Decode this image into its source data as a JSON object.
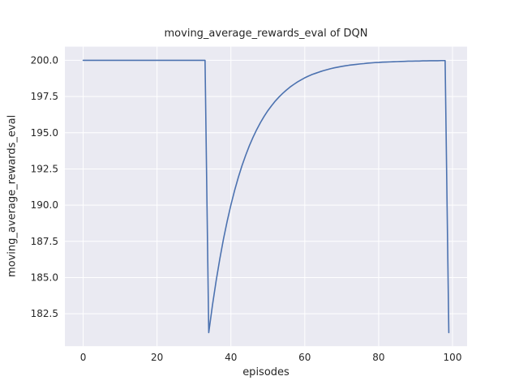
{
  "figure": {
    "background": "#ffffff"
  },
  "chart_data": {
    "type": "line",
    "title": "moving_average_rewards_eval of DQN",
    "xlabel": "episodes",
    "ylabel": "moving_average_rewards_eval",
    "x": [
      0,
      1,
      2,
      3,
      4,
      5,
      6,
      7,
      8,
      9,
      10,
      11,
      12,
      13,
      14,
      15,
      16,
      17,
      18,
      19,
      20,
      21,
      22,
      23,
      24,
      25,
      26,
      27,
      28,
      29,
      30,
      31,
      32,
      33,
      34,
      35,
      36,
      37,
      38,
      39,
      40,
      41,
      42,
      43,
      44,
      45,
      46,
      47,
      48,
      49,
      50,
      51,
      52,
      53,
      54,
      55,
      56,
      57,
      58,
      59,
      60,
      61,
      62,
      63,
      64,
      65,
      66,
      67,
      68,
      69,
      70,
      71,
      72,
      73,
      74,
      75,
      76,
      77,
      78,
      79,
      80,
      81,
      82,
      83,
      84,
      85,
      86,
      87,
      88,
      89,
      90,
      91,
      92,
      93,
      94,
      95,
      96,
      97,
      98,
      99
    ],
    "y": [
      200,
      200,
      200,
      200,
      200,
      200,
      200,
      200,
      200,
      200,
      200,
      200,
      200,
      200,
      200,
      200,
      200,
      200,
      200,
      200,
      200,
      200,
      200,
      200,
      200,
      200,
      200,
      200,
      200,
      200,
      200,
      200,
      200,
      200,
      181.2,
      183.08,
      184.77,
      186.29,
      187.67,
      188.9,
      190.01,
      191.01,
      191.91,
      192.72,
      193.44,
      194.1,
      194.69,
      195.22,
      195.7,
      196.13,
      196.52,
      196.86,
      197.18,
      197.46,
      197.71,
      197.94,
      198.15,
      198.33,
      198.5,
      198.65,
      198.79,
      198.91,
      199.02,
      199.11,
      199.2,
      199.28,
      199.35,
      199.42,
      199.48,
      199.53,
      199.58,
      199.62,
      199.66,
      199.69,
      199.72,
      199.75,
      199.77,
      199.8,
      199.82,
      199.84,
      199.85,
      199.87,
      199.88,
      199.89,
      199.9,
      199.91,
      199.92,
      199.93,
      199.94,
      199.94,
      199.95,
      199.95,
      199.96,
      199.96,
      199.97,
      199.97,
      199.97,
      199.98,
      199.98,
      181.2
    ],
    "xlim": [
      -4.95,
      103.95
    ],
    "ylim": [
      180.26,
      200.94
    ],
    "xticks": {
      "values": [
        0,
        20,
        40,
        60,
        80,
        100
      ],
      "labels": [
        "0",
        "20",
        "40",
        "60",
        "80",
        "100"
      ]
    },
    "yticks": {
      "values": [
        182.5,
        185.0,
        187.5,
        190.0,
        192.5,
        195.0,
        197.5,
        200.0
      ],
      "labels": [
        "182.5",
        "185.0",
        "187.5",
        "190.0",
        "192.5",
        "195.0",
        "197.5",
        "200.0"
      ]
    },
    "grid": true,
    "style": {
      "line_color": "#4c72b0",
      "line_width": 1.6,
      "plot_bg": "#eaeaf2",
      "grid_color": "#ffffff",
      "text_color": "#262626"
    }
  }
}
